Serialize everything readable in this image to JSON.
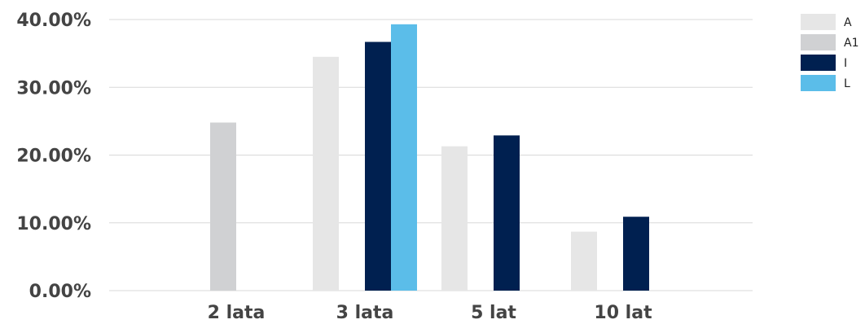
{
  "chart_data": {
    "type": "bar",
    "categories": [
      "2 lata",
      "3 lata",
      "5 lat",
      "10 lat"
    ],
    "series": [
      {
        "name": "A",
        "color": "#e6e6e6",
        "values": [
          null,
          34.5,
          21.3,
          8.7
        ]
      },
      {
        "name": "A1",
        "color": "#d0d1d3",
        "values": [
          24.8,
          null,
          null,
          null
        ]
      },
      {
        "name": "I",
        "color": "#002050",
        "values": [
          null,
          36.7,
          22.9,
          10.9
        ]
      },
      {
        "name": "L",
        "color": "#5bbde9",
        "values": [
          null,
          39.3,
          null,
          null
        ]
      }
    ],
    "yticks": [
      "0.00%",
      "10.00%",
      "20.00%",
      "30.00%",
      "40.00%"
    ],
    "ylim": [
      0,
      40
    ],
    "grid": true,
    "legend": "top-right"
  }
}
